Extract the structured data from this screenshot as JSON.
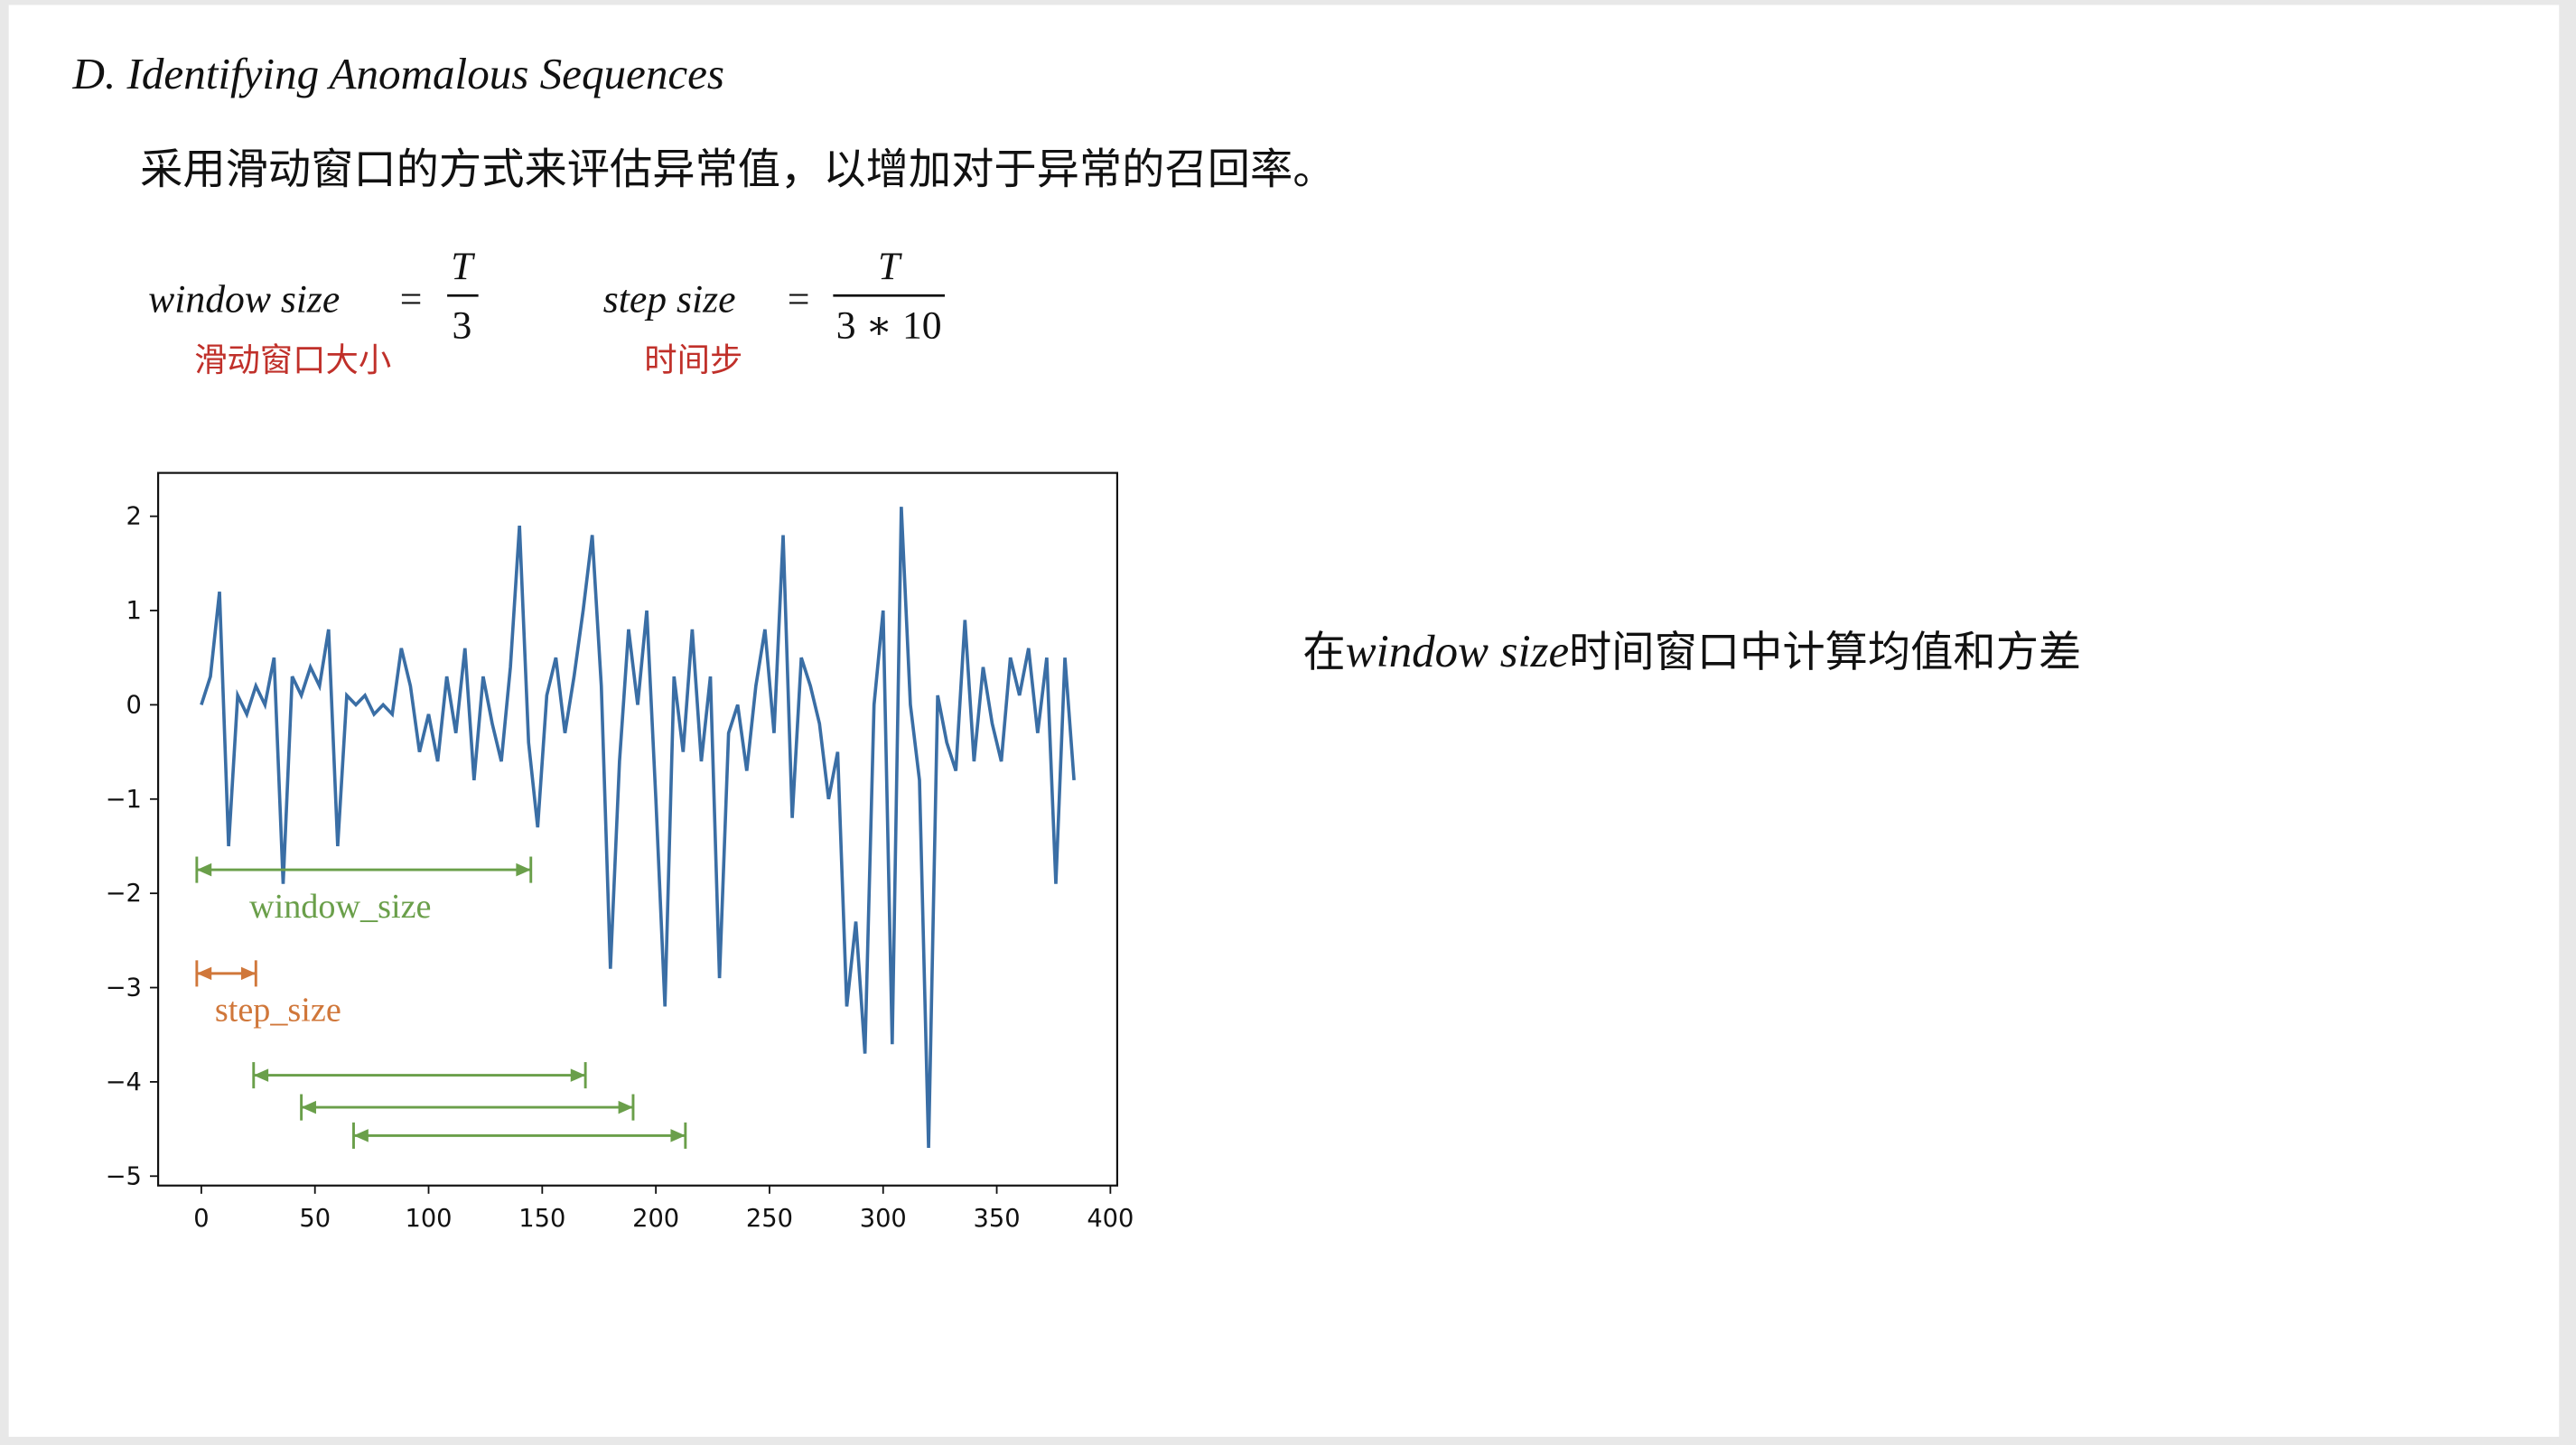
{
  "heading": "D. Identifying Anomalous Sequences",
  "description": "采用滑动窗口的方式来评估异常值，以增加对于异常的召回率。",
  "formulas": [
    {
      "lhs": "window size",
      "relation": "=",
      "numerator": "T",
      "denominator": "3",
      "caption": "滑动窗口大小"
    },
    {
      "lhs": "step size",
      "relation": "=",
      "numerator": "T",
      "denominator": "3 ∗ 10",
      "caption": "时间步"
    }
  ],
  "note": [
    "在",
    "window size",
    "时间窗口中计算均值和方差"
  ],
  "chart_data": {
    "type": "line",
    "x": [
      0,
      4,
      8,
      12,
      16,
      20,
      24,
      28,
      32,
      36,
      40,
      44,
      48,
      52,
      56,
      60,
      64,
      68,
      72,
      76,
      80,
      84,
      88,
      92,
      96,
      100,
      104,
      108,
      112,
      116,
      120,
      124,
      128,
      132,
      136,
      140,
      144,
      148,
      152,
      156,
      160,
      164,
      168,
      172,
      176,
      180,
      184,
      188,
      192,
      196,
      200,
      204,
      208,
      212,
      216,
      220,
      224,
      228,
      232,
      236,
      240,
      244,
      248,
      252,
      256,
      260,
      264,
      268,
      272,
      276,
      280,
      284,
      288,
      292,
      296,
      300,
      304,
      308,
      312,
      316,
      320,
      324,
      328,
      332,
      336,
      340,
      344,
      348,
      352,
      356,
      360,
      364,
      368,
      372,
      376,
      380,
      384
    ],
    "series": [
      {
        "color": "#3a6ea5",
        "values": [
          0.0,
          0.3,
          1.2,
          -1.5,
          0.1,
          -0.1,
          0.2,
          0.0,
          0.5,
          -1.9,
          0.3,
          0.1,
          0.4,
          0.2,
          0.8,
          -1.5,
          0.1,
          0.0,
          0.1,
          -0.1,
          0.0,
          -0.1,
          0.6,
          0.2,
          -0.5,
          -0.1,
          -0.6,
          0.3,
          -0.3,
          0.6,
          -0.8,
          0.3,
          -0.2,
          -0.6,
          0.4,
          1.9,
          -0.4,
          -1.3,
          0.1,
          0.5,
          -0.3,
          0.3,
          1.0,
          1.8,
          0.2,
          -2.8,
          -0.6,
          0.8,
          0.0,
          1.0,
          -1.0,
          -3.2,
          0.3,
          -0.5,
          0.8,
          -0.6,
          0.3,
          -2.9,
          -0.3,
          0.0,
          -0.7,
          0.2,
          0.8,
          -0.3,
          1.8,
          -1.2,
          0.5,
          0.2,
          -0.2,
          -1.0,
          -0.5,
          -3.2,
          -2.3,
          -3.7,
          0.0,
          1.0,
          -3.6,
          2.1,
          0.0,
          -0.8,
          -4.7,
          0.1,
          -0.4,
          -0.7,
          0.9,
          -0.6,
          0.4,
          -0.2,
          -0.6,
          0.5,
          0.1,
          0.6,
          -0.3,
          0.5,
          -1.9,
          0.5,
          -0.8
        ]
      }
    ],
    "xlim": [
      -19,
      403
    ],
    "ylim": [
      -5.1,
      2.46
    ],
    "xticks": [
      0,
      50,
      100,
      150,
      200,
      250,
      300,
      350,
      400
    ],
    "yticks": [
      {
        "value": -5,
        "label": "−5"
      },
      {
        "value": -4,
        "label": "−4"
      },
      {
        "value": -3,
        "label": "−3"
      },
      {
        "value": -2,
        "label": "−2"
      },
      {
        "value": -1,
        "label": "−1"
      },
      0,
      1,
      2
    ],
    "annotations": [
      {
        "label": "window_size",
        "x": [
          -2,
          145
        ],
        "y": -1.75,
        "color": "#6a9f4a"
      },
      {
        "label": "step_size",
        "x": [
          -2,
          24
        ],
        "y": -2.85,
        "color": "#d0773a"
      },
      {
        "x": [
          23,
          169
        ],
        "y": -3.93,
        "color": "#6a9f4a"
      },
      {
        "x": [
          44,
          190
        ],
        "y": -4.27,
        "color": "#6a9f4a"
      },
      {
        "x": [
          67,
          213
        ],
        "y": -4.57,
        "color": "#6a9f4a"
      }
    ]
  }
}
